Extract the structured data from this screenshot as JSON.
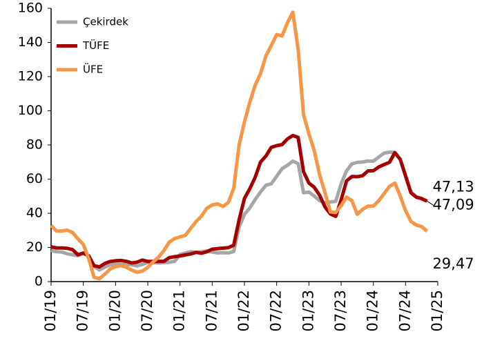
{
  "chart_data": {
    "type": "line",
    "xlim": [
      0,
      72
    ],
    "xticks": [
      {
        "value": 0,
        "label": "01/19"
      },
      {
        "value": 6,
        "label": "07/19"
      },
      {
        "value": 12,
        "label": "01/20"
      },
      {
        "value": 18,
        "label": "07/20"
      },
      {
        "value": 24,
        "label": "01/21"
      },
      {
        "value": 30,
        "label": "07/21"
      },
      {
        "value": 36,
        "label": "01/22"
      },
      {
        "value": 42,
        "label": "07/22"
      },
      {
        "value": 48,
        "label": "01/23"
      },
      {
        "value": 54,
        "label": "07/23"
      },
      {
        "value": 60,
        "label": "01/24"
      },
      {
        "value": 66,
        "label": "07/24"
      },
      {
        "value": 72,
        "label": "01/25"
      }
    ],
    "ylim": [
      0,
      160
    ],
    "yticks": [
      0,
      20,
      40,
      60,
      80,
      100,
      120,
      140,
      160
    ],
    "grid": false,
    "legend": "top-left",
    "series": [
      {
        "name": "Çekirdek",
        "color": "#a6a6a6",
        "values": [
          18.3,
          17.5,
          17.3,
          16.3,
          15.7,
          15.2,
          16.6,
          15.3,
          9,
          6.8,
          8.5,
          9.8,
          10.2,
          10.2,
          10.1,
          9.9,
          9.2,
          10.1,
          11.2,
          11.1,
          10.9,
          11.1,
          11.3,
          11.8,
          15.9,
          16.7,
          17.5,
          17.2,
          17.5,
          18,
          17.3,
          16.8,
          16.9,
          16.8,
          17.6,
          31.9,
          39.4,
          43.1,
          48.1,
          52.5,
          56.4,
          57.3,
          61.7,
          66.1,
          68.1,
          70.5,
          69.1,
          52,
          52.4,
          50.1,
          47.3,
          46.2,
          46.6,
          47,
          57.3,
          64.8,
          68.9,
          69.8,
          70,
          70.6,
          70.5,
          72.9,
          75.2,
          75.8,
          75.6,
          71.6,
          62,
          52.4,
          49.6,
          48.5,
          47.13
        ],
        "value_labels": [
          null,
          null,
          null,
          null,
          null,
          null,
          null,
          null,
          null,
          null,
          null,
          null,
          null,
          null,
          null,
          null,
          null,
          null,
          null,
          null,
          null,
          null,
          null,
          null,
          null,
          null,
          null,
          null,
          null,
          null,
          null,
          null,
          null,
          null,
          null,
          null,
          null,
          null,
          null,
          null,
          null,
          null,
          null,
          null,
          null,
          null,
          null,
          null,
          null,
          null,
          null,
          null,
          null,
          null,
          null,
          null,
          null,
          null,
          null,
          null,
          null,
          null,
          null,
          null,
          null,
          null,
          null,
          null,
          null,
          null,
          "47,13"
        ]
      },
      {
        "name": "TÜFE",
        "color": "#a50000",
        "values": [
          20.4,
          19.7,
          19.7,
          19.5,
          18.7,
          15.7,
          16.7,
          15,
          9.3,
          8.6,
          10.6,
          11.8,
          12.2,
          12.4,
          11.9,
          10.9,
          11.4,
          12.6,
          11.8,
          11.8,
          11.8,
          11.9,
          14,
          14.6,
          15,
          15.6,
          16.2,
          17.1,
          16.6,
          17.5,
          19,
          19.3,
          19.6,
          19.9,
          21.3,
          36.1,
          48.7,
          54.4,
          61.1,
          70,
          73.5,
          78.6,
          79.6,
          80.2,
          83.5,
          85.5,
          84.4,
          64.3,
          57.7,
          55.2,
          50.5,
          43.7,
          39.6,
          38.2,
          47.8,
          58.9,
          61.5,
          61.4,
          62,
          64.8,
          64.9,
          67.1,
          68.5,
          69.8,
          75.5,
          71.6,
          61.8,
          52,
          49.4,
          48.6,
          47.09
        ],
        "value_labels": [
          null,
          null,
          null,
          null,
          null,
          null,
          null,
          null,
          null,
          null,
          null,
          null,
          null,
          null,
          null,
          null,
          null,
          null,
          null,
          null,
          null,
          null,
          null,
          null,
          null,
          null,
          null,
          null,
          null,
          null,
          null,
          null,
          null,
          null,
          null,
          null,
          null,
          null,
          null,
          null,
          null,
          null,
          null,
          null,
          null,
          null,
          null,
          null,
          null,
          null,
          null,
          null,
          null,
          null,
          null,
          null,
          null,
          null,
          null,
          null,
          null,
          null,
          null,
          null,
          null,
          null,
          null,
          null,
          null,
          null,
          "47,09"
        ]
      },
      {
        "name": "ÜFE",
        "color": "#f79646",
        "values": [
          32.9,
          29.6,
          29.6,
          30.1,
          28.7,
          25,
          21.7,
          13.5,
          2.5,
          1.7,
          4.3,
          7.4,
          8.8,
          9.3,
          8.5,
          6.7,
          5.5,
          6.2,
          8.3,
          11.5,
          14.3,
          18.2,
          23.1,
          25.2,
          26.2,
          27.1,
          31.2,
          35.2,
          38.3,
          42.9,
          44.9,
          45.5,
          44,
          46.3,
          54.6,
          79.9,
          93.5,
          105,
          115,
          121.8,
          132.2,
          138.3,
          144.6,
          143.8,
          151.5,
          157.7,
          136,
          97.7,
          86.5,
          76.6,
          62.4,
          52.1,
          40.8,
          40.4,
          44.5,
          49.4,
          47.4,
          39.4,
          42.3,
          44.2,
          44.2,
          47.3,
          51.5,
          55.7,
          57.7,
          50.1,
          41.4,
          35.2,
          33.1,
          32.2,
          29.47
        ],
        "value_labels": [
          null,
          null,
          null,
          null,
          null,
          null,
          null,
          null,
          null,
          null,
          null,
          null,
          null,
          null,
          null,
          null,
          null,
          null,
          null,
          null,
          null,
          null,
          null,
          null,
          null,
          null,
          null,
          null,
          null,
          null,
          null,
          null,
          null,
          null,
          null,
          null,
          null,
          null,
          null,
          null,
          null,
          null,
          null,
          null,
          null,
          null,
          null,
          null,
          null,
          null,
          null,
          null,
          null,
          null,
          null,
          null,
          null,
          null,
          null,
          null,
          null,
          null,
          null,
          null,
          null,
          null,
          null,
          null,
          null,
          null,
          "29,47"
        ]
      }
    ]
  }
}
